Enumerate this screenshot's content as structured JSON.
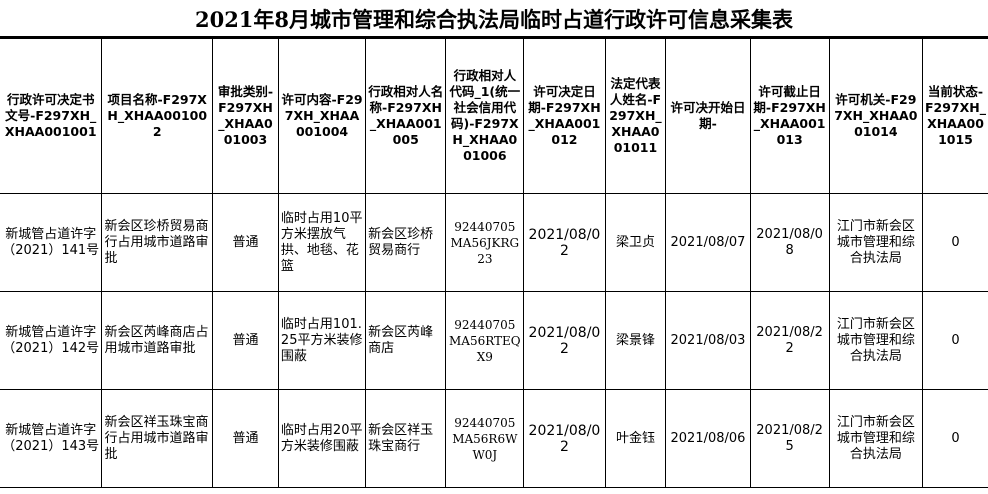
{
  "title": "2021年8月城市管理和综合执法局临时占道行政许可信息采集表",
  "columns": [
    "行政许可决定书文号-F297XH_XHAA001001",
    "项目名称-F297XH_XHAA001002",
    "审批类别-F297XH_XHAA001003",
    "许可内容-F297XH_XHAA001004",
    "行政相对人名称-F297XH_XHAA001005",
    "行政相对人代码_1(统一社会信用代码)-F297XH_XHAA001006",
    "许可决定日期-F297XH_XHAA001012",
    "法定代表人姓名-F297XH_XHAA001011",
    "许可决开始日期-",
    "许可截止日期-F297XH_XHAA001013",
    "许可机关-F297XH_XHAA001014",
    "当前状态-F297XH_XHAA001015"
  ],
  "rows": [
    [
      "新城管占道许字（2021）141号",
      "新会区珍桥贸易商行占用城市道路审批",
      "普通",
      "临时占用10平方米摆放气拱、地毯、花篮",
      "新会区珍桥贸易商行",
      "92440705MA56JKRG23",
      "2021/08/02",
      "梁卫贞",
      "2021/08/07",
      "2021/08/08",
      "江门市新会区城市管理和综合执法局",
      "0"
    ],
    [
      "新城管占道许字（2021）142号",
      "新会区芮峰商店占用城市道路审批",
      "普通",
      "临时占用101.25平方米装修围蔽",
      "新会区芮峰商店",
      "92440705MA56RTEQX9",
      "2021/08/02",
      "梁景锋",
      "2021/08/03",
      "2021/08/22",
      "江门市新会区城市管理和综合执法局",
      "0"
    ],
    [
      "新城管占道许字（2021）143号",
      "新会区祥玉珠宝商行占用城市道路审批",
      "普通",
      "临时占用20平方米装修围蔽",
      "新会区祥玉珠宝商行",
      "92440705MA56R6WW0J",
      "2021/08/02",
      "叶金钰",
      "2021/08/06",
      "2021/08/25",
      "江门市新会区城市管理和综合执法局",
      "0"
    ]
  ]
}
